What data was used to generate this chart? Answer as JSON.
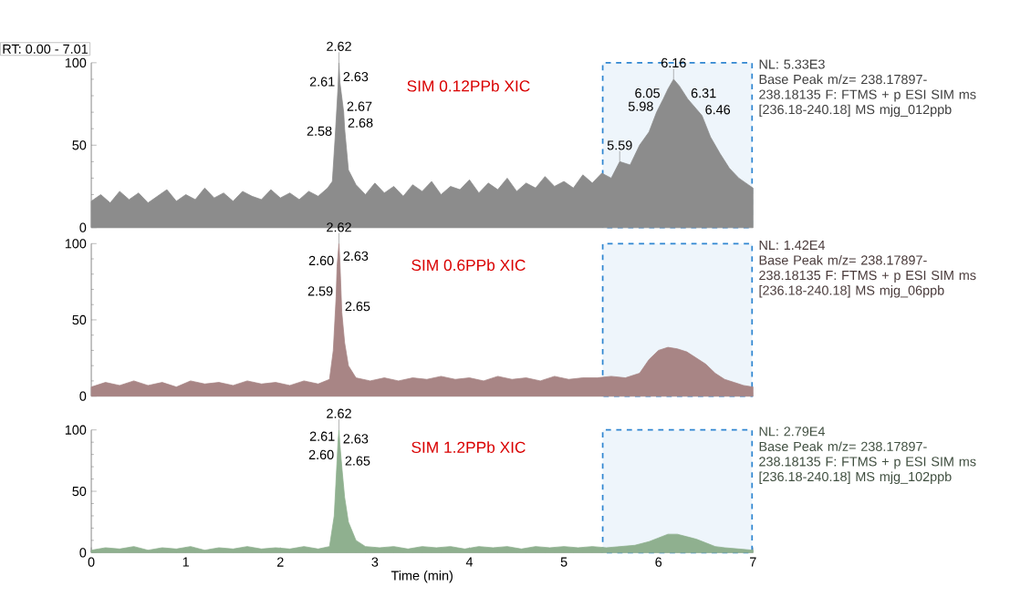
{
  "chart_data": [
    {
      "type": "area",
      "title": "SIM 0.12PPb XIC",
      "subtitle": "RT: 0.00 - 7.01",
      "xlim": [
        0,
        7
      ],
      "xticks": [
        0,
        1,
        2,
        3,
        4,
        5,
        6,
        7
      ],
      "ylim": [
        0,
        100
      ],
      "yticks": [
        0,
        50,
        100
      ],
      "tick_labels": "y",
      "series": [
        {
          "color": "#8c8c8c",
          "x": [
            0,
            0.1,
            0.2,
            0.3,
            0.4,
            0.5,
            0.6,
            0.7,
            0.8,
            0.9,
            1.0,
            1.1,
            1.2,
            1.3,
            1.4,
            1.5,
            1.6,
            1.7,
            1.8,
            1.9,
            2.0,
            2.1,
            2.2,
            2.3,
            2.4,
            2.5,
            2.55,
            2.58,
            2.61,
            2.62,
            2.63,
            2.67,
            2.68,
            2.72,
            2.8,
            2.9,
            3.0,
            3.1,
            3.2,
            3.3,
            3.4,
            3.5,
            3.6,
            3.7,
            3.8,
            3.9,
            4.0,
            4.1,
            4.2,
            4.3,
            4.4,
            4.5,
            4.6,
            4.7,
            4.8,
            4.9,
            5.0,
            5.1,
            5.2,
            5.3,
            5.4,
            5.5,
            5.59,
            5.7,
            5.8,
            5.9,
            5.98,
            6.05,
            6.1,
            6.16,
            6.22,
            6.31,
            6.4,
            6.46,
            6.55,
            6.65,
            6.75,
            6.85,
            6.95,
            7.0
          ],
          "values": [
            16,
            20,
            15,
            22,
            17,
            21,
            15,
            19,
            23,
            16,
            20,
            17,
            24,
            18,
            21,
            16,
            22,
            19,
            17,
            23,
            18,
            21,
            17,
            22,
            19,
            24,
            28,
            55,
            85,
            100,
            88,
            70,
            60,
            35,
            26,
            20,
            27,
            21,
            25,
            19,
            26,
            22,
            28,
            20,
            25,
            23,
            29,
            21,
            27,
            23,
            30,
            22,
            27,
            24,
            31,
            25,
            28,
            24,
            32,
            27,
            33,
            30,
            40,
            38,
            50,
            58,
            70,
            78,
            84,
            90,
            86,
            78,
            72,
            68,
            55,
            45,
            36,
            30,
            26,
            24
          ]
        }
      ],
      "bands": [
        {
          "axis": "x",
          "from": 5.41,
          "to": 6.99,
          "color": "#2f86d1"
        }
      ],
      "annotations": [
        "NL: 5.33E3",
        "Base Peak m/z= 238.17897-238.18135 F: FTMS + p ESI SIM ms [236.18-240.18] MS mjg_012ppb",
        {
          "text": "2.62",
          "x": 2.62,
          "y": 100
        },
        {
          "text": "2.61",
          "x": 2.61,
          "y": 85
        },
        {
          "text": "2.63",
          "x": 2.63,
          "y": 88
        },
        {
          "text": "2.67",
          "x": 2.67,
          "y": 70
        },
        {
          "text": "2.58",
          "x": 2.58,
          "y": 55
        },
        {
          "text": "2.68",
          "x": 2.68,
          "y": 60
        },
        {
          "text": "5.59",
          "x": 5.59,
          "y": 40
        },
        {
          "text": "6.16",
          "x": 6.16,
          "y": 90
        },
        {
          "text": "6.05",
          "x": 6.05,
          "y": 78
        },
        {
          "text": "5.98",
          "x": 5.98,
          "y": 70
        },
        {
          "text": "6.31",
          "x": 6.31,
          "y": 78
        },
        {
          "text": "6.46",
          "x": 6.46,
          "y": 68
        }
      ]
    },
    {
      "type": "area",
      "title": "SIM 0.6PPb XIC",
      "xlim": [
        0,
        7
      ],
      "xticks": [
        0,
        1,
        2,
        3,
        4,
        5,
        6,
        7
      ],
      "ylim": [
        0,
        100
      ],
      "yticks": [
        0,
        50,
        100
      ],
      "tick_labels": "y",
      "series": [
        {
          "color": "#a88585",
          "x": [
            0,
            0.15,
            0.3,
            0.45,
            0.6,
            0.75,
            0.9,
            1.05,
            1.2,
            1.35,
            1.5,
            1.65,
            1.8,
            1.95,
            2.1,
            2.25,
            2.4,
            2.52,
            2.56,
            2.59,
            2.6,
            2.62,
            2.63,
            2.65,
            2.68,
            2.72,
            2.8,
            2.95,
            3.1,
            3.25,
            3.4,
            3.55,
            3.7,
            3.85,
            4.0,
            4.15,
            4.3,
            4.45,
            4.6,
            4.75,
            4.9,
            5.05,
            5.2,
            5.35,
            5.5,
            5.65,
            5.8,
            5.9,
            6.0,
            6.1,
            6.2,
            6.3,
            6.4,
            6.5,
            6.6,
            6.7,
            6.8,
            6.9,
            7.0
          ],
          "values": [
            6,
            9,
            7,
            10,
            7,
            9,
            6,
            10,
            8,
            9,
            7,
            10,
            8,
            9,
            7,
            10,
            8,
            11,
            30,
            65,
            85,
            100,
            88,
            55,
            35,
            20,
            12,
            10,
            12,
            10,
            12,
            11,
            13,
            11,
            12,
            10,
            13,
            11,
            12,
            10,
            13,
            11,
            12,
            12,
            13,
            12,
            15,
            24,
            30,
            32,
            31,
            29,
            25,
            21,
            15,
            11,
            9,
            7,
            6
          ]
        }
      ],
      "bands": [
        {
          "axis": "x",
          "from": 5.41,
          "to": 6.99,
          "color": "#2f86d1"
        }
      ],
      "annotations": [
        "NL: 1.42E4",
        "Base Peak m/z= 238.17897-238.18135 F: FTMS + p ESI SIM ms [236.18-240.18] MS mjg_06ppb",
        {
          "text": "2.62",
          "x": 2.62,
          "y": 100
        },
        {
          "text": "2.60",
          "x": 2.6,
          "y": 85
        },
        {
          "text": "2.63",
          "x": 2.63,
          "y": 88
        },
        {
          "text": "2.59",
          "x": 2.59,
          "y": 65
        },
        {
          "text": "2.65",
          "x": 2.65,
          "y": 55
        }
      ]
    },
    {
      "type": "area",
      "title": "SIM 1.2PPb XIC",
      "xlabel": "Time (min)",
      "xlim": [
        0,
        7
      ],
      "xticks": [
        0,
        1,
        2,
        3,
        4,
        5,
        6,
        7
      ],
      "ylim": [
        0,
        100
      ],
      "yticks": [
        0,
        50,
        100
      ],
      "series": [
        {
          "color": "#8fb08f",
          "x": [
            0,
            0.15,
            0.3,
            0.45,
            0.6,
            0.75,
            0.9,
            1.05,
            1.2,
            1.35,
            1.5,
            1.65,
            1.8,
            1.95,
            2.1,
            2.25,
            2.4,
            2.52,
            2.57,
            2.6,
            2.61,
            2.62,
            2.63,
            2.65,
            2.68,
            2.72,
            2.8,
            2.9,
            3.05,
            3.2,
            3.35,
            3.5,
            3.65,
            3.8,
            3.95,
            4.1,
            4.25,
            4.4,
            4.55,
            4.7,
            4.85,
            5.0,
            5.15,
            5.3,
            5.45,
            5.6,
            5.75,
            5.9,
            6.0,
            6.1,
            6.2,
            6.3,
            6.4,
            6.5,
            6.6,
            6.7,
            6.85,
            7.0
          ],
          "values": [
            2,
            4,
            3,
            5,
            2,
            4,
            3,
            5,
            2,
            4,
            3,
            5,
            3,
            4,
            3,
            5,
            3,
            5,
            30,
            75,
            90,
            100,
            88,
            70,
            45,
            25,
            10,
            5,
            4,
            5,
            3,
            5,
            4,
            5,
            3,
            5,
            4,
            5,
            3,
            5,
            4,
            5,
            4,
            5,
            4,
            5,
            6,
            9,
            12,
            15,
            15,
            13,
            11,
            8,
            5,
            4,
            3,
            2
          ]
        }
      ],
      "bands": [
        {
          "axis": "x",
          "from": 5.41,
          "to": 6.99,
          "color": "#2f86d1"
        }
      ],
      "annotations": [
        "NL: 2.79E4",
        "Base Peak m/z= 238.17897-238.18135 F: FTMS + p ESI SIM ms [236.18-240.18] MS mjg_102ppb",
        {
          "text": "2.62",
          "x": 2.62,
          "y": 100
        },
        {
          "text": "2.61",
          "x": 2.61,
          "y": 90
        },
        {
          "text": "2.63",
          "x": 2.63,
          "y": 88
        },
        {
          "text": "2.60",
          "x": 2.6,
          "y": 75
        },
        {
          "text": "2.65",
          "x": 2.65,
          "y": 70
        }
      ]
    }
  ]
}
